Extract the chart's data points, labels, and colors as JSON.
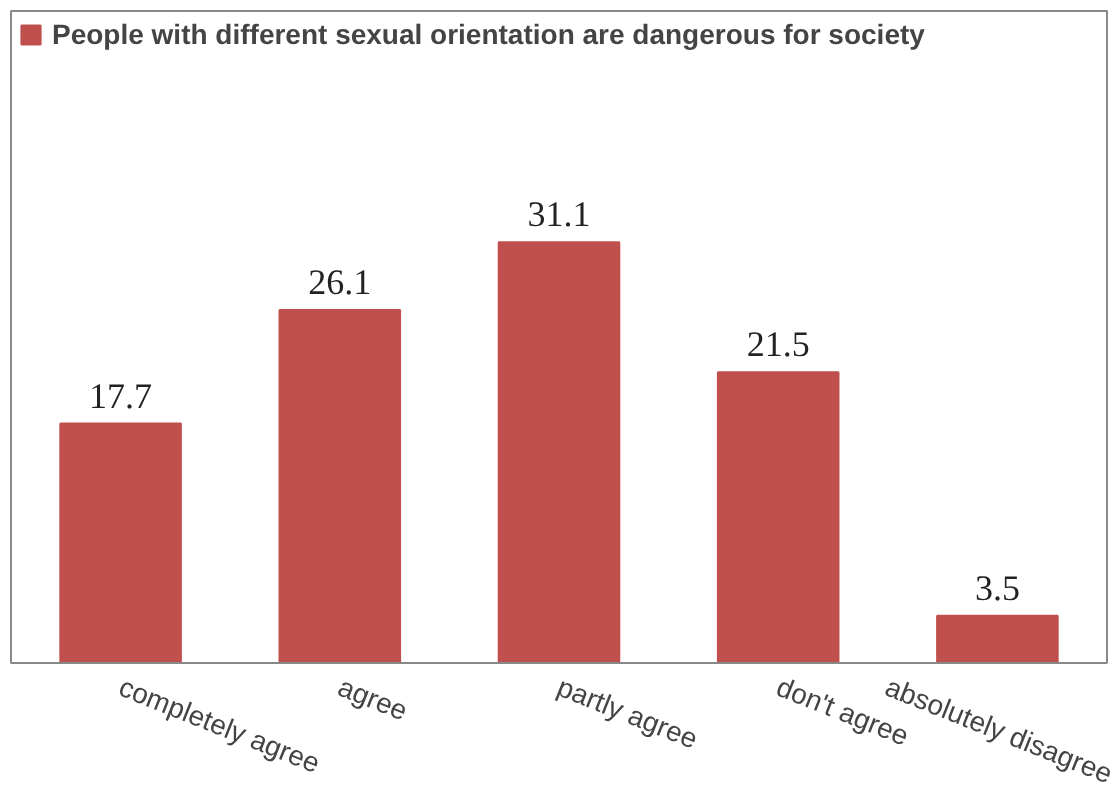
{
  "chart_data": {
    "type": "bar",
    "categories": [
      "completely agree",
      "agree",
      "partly agree",
      "don't agree",
      "absolutely disagree"
    ],
    "series": [
      {
        "name": "People with different sexual orientation are dangerous for society",
        "color": "#c0504d",
        "values": [
          17.7,
          26.1,
          31.1,
          21.5,
          3.5
        ]
      }
    ],
    "data_labels": true,
    "legend": "top",
    "grid": false
  }
}
